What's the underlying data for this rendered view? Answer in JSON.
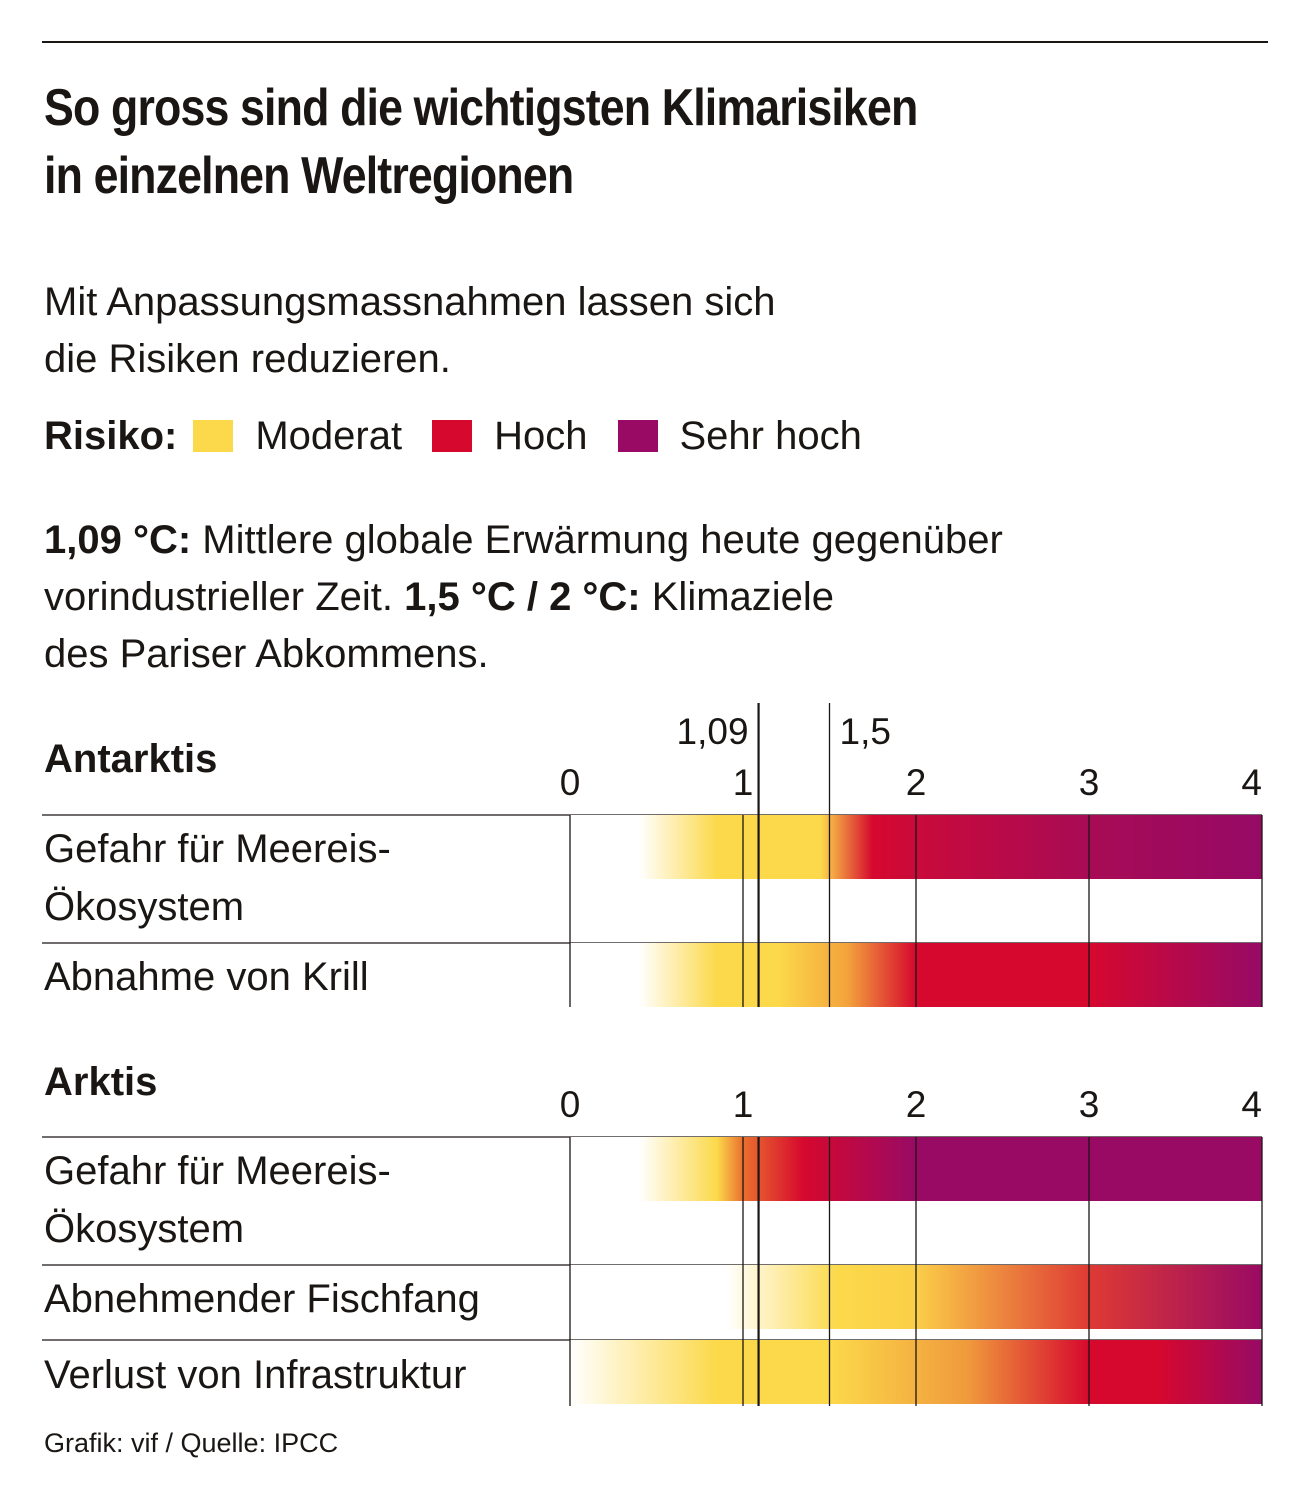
{
  "title": [
    "So gross sind die wichtigsten Klimarisiken",
    "in einzelnen Weltregionen"
  ],
  "subtitle": [
    "Mit Anpassungsmassnahmen lassen sich",
    "die Risiken reduzieren."
  ],
  "legend": {
    "label": "Risiko:",
    "items": [
      {
        "label": "Moderat",
        "color": "#fbd94a"
      },
      {
        "label": "Hoch",
        "color": "#d6082e"
      },
      {
        "label": "Sehr hoch",
        "color": "#990a64"
      }
    ]
  },
  "note": {
    "line1_bold": "1,09 °C:",
    "line1_text": " Mittlere globale Erwärmung heute gegenüber",
    "line2_text": "vorindustrieller Zeit. ",
    "line2_bold": "1,5 °C / 2 °C:",
    "line2_text2": " Klimaziele",
    "line3_text": "des Pariser Abkommens."
  },
  "source": "Grafik: vif / Quelle: IPCC",
  "chart_data": {
    "type": "heatmap",
    "x_unit": "°C",
    "xlim": [
      0,
      4
    ],
    "ticks": [
      "0",
      "1",
      "2",
      "3",
      "4"
    ],
    "reference_lines": [
      {
        "value": 1.09,
        "label": "1,09"
      },
      {
        "value": 1.5,
        "label": "1,5"
      }
    ],
    "panels": [
      {
        "region": "Antarktis",
        "rows": [
          {
            "label": [
              "Gefahr für Meereis-",
              "Ökosystem"
            ],
            "stops": [
              [
                0.4,
                "#ffffff"
              ],
              [
                0.85,
                "#fcd94a"
              ],
              [
                1.45,
                "#fcd94a"
              ],
              [
                1.75,
                "#d6082e"
              ],
              [
                2.0,
                "#c90a3b"
              ],
              [
                3.0,
                "#a80b55"
              ],
              [
                4.0,
                "#960a66"
              ]
            ]
          },
          {
            "label": [
              "Abnahme von Krill"
            ],
            "stops": [
              [
                0.4,
                "#ffffff"
              ],
              [
                0.85,
                "#fcd94a"
              ],
              [
                1.2,
                "#fcd94a"
              ],
              [
                1.6,
                "#f3a43c"
              ],
              [
                2.0,
                "#d6082e"
              ],
              [
                3.0,
                "#d6082e"
              ],
              [
                4.0,
                "#960a66"
              ]
            ]
          }
        ]
      },
      {
        "region": "Arktis",
        "rows": [
          {
            "label": [
              "Gefahr für Meereis-",
              "Ökosystem"
            ],
            "stops": [
              [
                0.4,
                "#ffffff"
              ],
              [
                0.85,
                "#fcd94a"
              ],
              [
                1.0,
                "#ea6f2e"
              ],
              [
                1.35,
                "#d6082e"
              ],
              [
                2.0,
                "#990a64"
              ],
              [
                4.0,
                "#990a64"
              ]
            ]
          },
          {
            "label": [
              "Abnehmender Fischfang"
            ],
            "stops": [
              [
                0.9,
                "#ffffff"
              ],
              [
                1.55,
                "#fcd94a"
              ],
              [
                2.0,
                "#fbcf48"
              ],
              [
                3.0,
                "#de3a34"
              ],
              [
                4.0,
                "#9a0a63"
              ]
            ]
          },
          {
            "label": [
              "Verlust von Infrastruktur"
            ],
            "stops": [
              [
                0.0,
                "#ffffff"
              ],
              [
                0.85,
                "#fcd94a"
              ],
              [
                1.5,
                "#fcd94a"
              ],
              [
                2.3,
                "#f09a3c"
              ],
              [
                3.0,
                "#d6082e"
              ],
              [
                3.4,
                "#d6082e"
              ],
              [
                4.0,
                "#970a65"
              ]
            ]
          }
        ]
      }
    ]
  }
}
